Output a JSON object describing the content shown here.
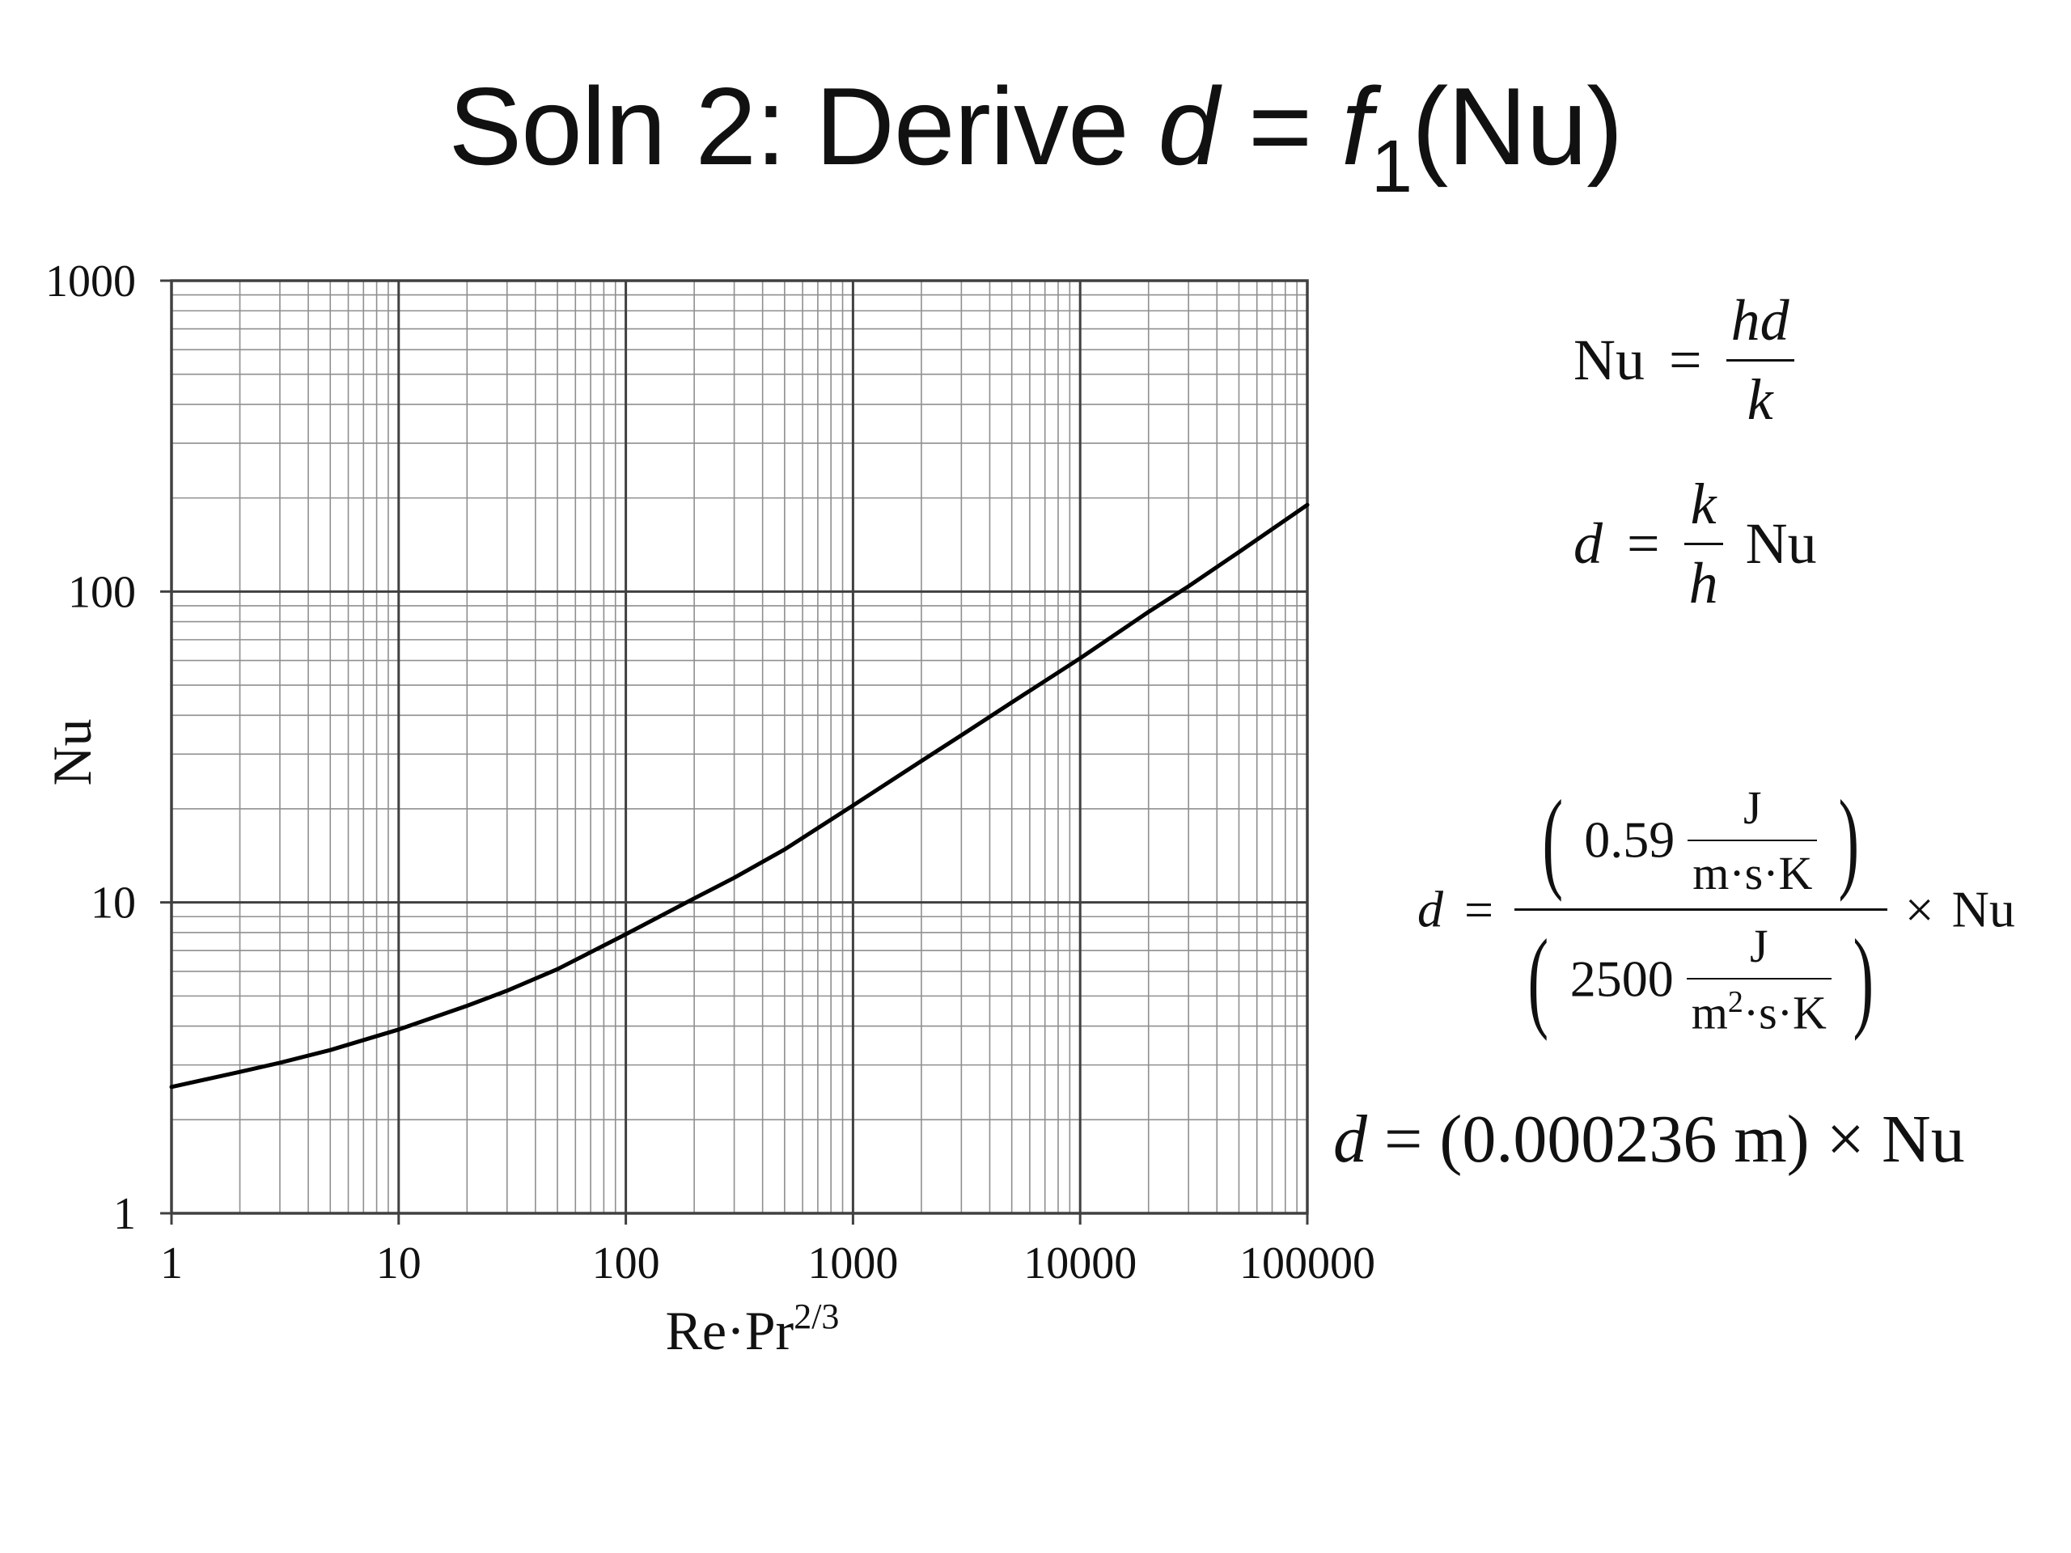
{
  "title": {
    "prefix": "Soln 2: Derive ",
    "var_d": "d",
    "equals": " = ",
    "func": "f",
    "func_sub": "1",
    "arg": "(Nu)"
  },
  "chart_data": {
    "type": "line",
    "x_scale": "log",
    "y_scale": "log",
    "xlim": [
      1,
      100000
    ],
    "ylim": [
      1,
      1000
    ],
    "grid": true,
    "xlabel": "Re·Pr",
    "xlabel_sup": "2/3",
    "ylabel": "Nu",
    "x_ticks": [
      1,
      10,
      100,
      1000,
      10000,
      100000
    ],
    "x_tick_labels": [
      "1",
      "10",
      "100",
      "1000",
      "10000",
      "100000"
    ],
    "y_ticks": [
      1,
      10,
      100,
      1000
    ],
    "y_tick_labels": [
      "1",
      "10",
      "100",
      "1000"
    ],
    "series": [
      {
        "color": "#000000",
        "x": [
          1,
          2,
          3,
          5,
          10,
          20,
          30,
          50,
          100,
          200,
          300,
          500,
          1000,
          2000,
          3000,
          5000,
          10000,
          20000,
          30000,
          50000,
          100000
        ],
        "y": [
          2.55,
          2.85,
          3.05,
          3.35,
          3.9,
          4.65,
          5.2,
          6.1,
          7.9,
          10.3,
          12.0,
          14.8,
          20.5,
          28.5,
          34.5,
          44.0,
          61.0,
          86.0,
          104.0,
          134.0,
          190.0
        ]
      }
    ]
  },
  "equations": {
    "eq1": {
      "lhs": "Nu",
      "eq": "=",
      "num": "hd",
      "den": "k"
    },
    "eq2": {
      "lhs": "d",
      "eq": "=",
      "num": "k",
      "den": "h",
      "rhs": "Nu"
    },
    "eq3": {
      "lhs": "d",
      "eq": "=",
      "num_value": "0.59",
      "num_unit_num": "J",
      "num_unit_den": "m·s·K",
      "den_value": "2500",
      "den_unit_num": "J",
      "den_unit_den_a": "m",
      "den_unit_den_sup": "2",
      "den_unit_den_b": "·s·K",
      "times": "×",
      "rhs": "Nu"
    },
    "eq4": {
      "lhs": "d",
      "rest": " = (0.000236 m) × Nu"
    }
  }
}
